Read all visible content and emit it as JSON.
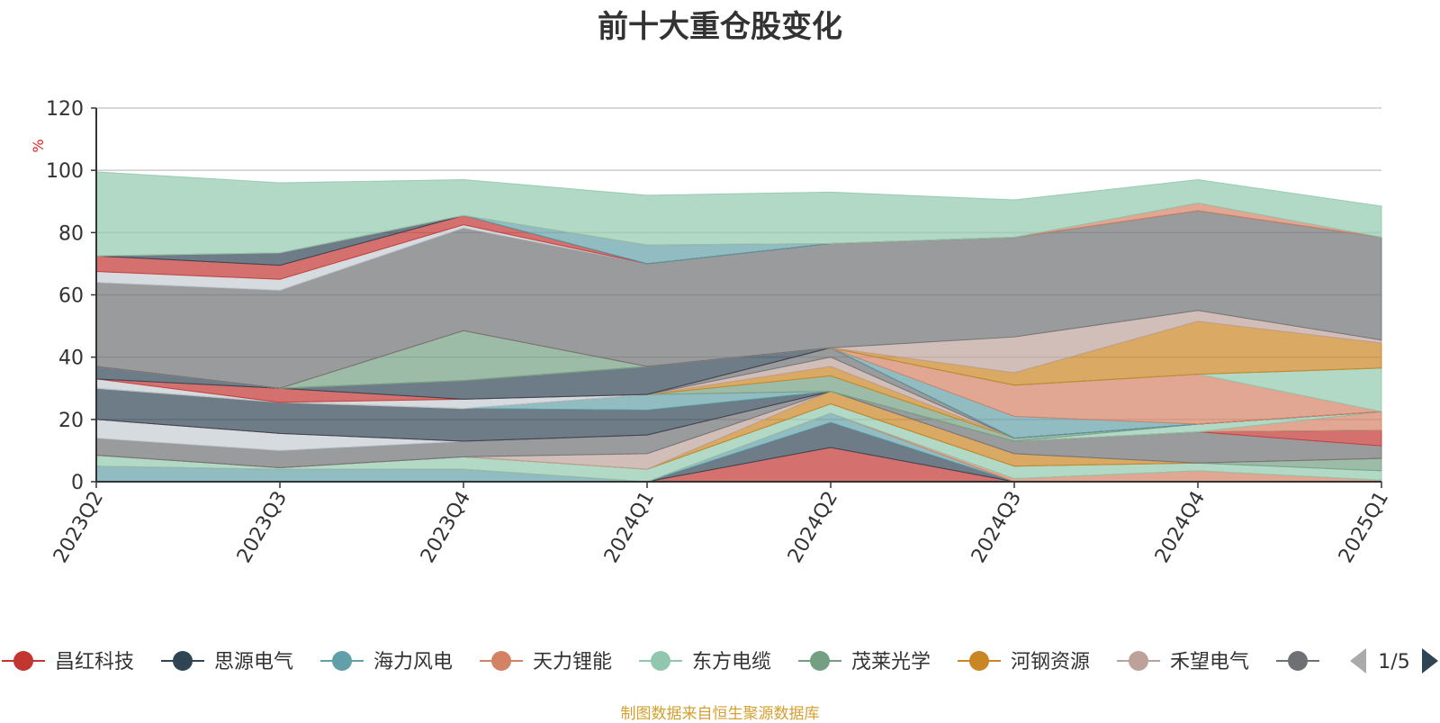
{
  "chart_data": {
    "type": "area",
    "title": "前十大重仓股变化",
    "ylabel": "%",
    "xlabel": "",
    "ylim": [
      0,
      120
    ],
    "yticks": [
      0,
      20,
      40,
      60,
      80,
      100,
      120
    ],
    "x": [
      "2023Q2",
      "2023Q3",
      "2023Q4",
      "2024Q1",
      "2024Q2",
      "2024Q3",
      "2024Q4",
      "2025Q1"
    ],
    "stacked": true,
    "series": [
      {
        "name": "",
        "values": [
          0,
          0,
          0,
          0,
          11,
          0,
          0,
          0
        ]
      },
      {
        "name": "",
        "values": [
          0,
          0,
          0,
          0,
          8,
          0,
          0,
          0
        ]
      },
      {
        "name": "",
        "values": [
          5,
          4,
          4,
          0,
          3,
          0,
          0,
          0
        ]
      },
      {
        "name": "",
        "values": [
          0,
          0,
          0,
          0,
          0,
          1,
          3.5,
          0.5
        ]
      },
      {
        "name": "",
        "values": [
          3.5,
          0.5,
          4,
          4,
          3,
          4,
          2.5,
          3
        ]
      },
      {
        "name": "",
        "values": [
          0,
          0,
          0,
          0,
          0,
          0,
          0,
          4
        ]
      },
      {
        "name": "",
        "values": [
          0,
          0,
          0,
          0,
          4,
          4,
          0,
          0
        ]
      },
      {
        "name": "",
        "values": [
          0,
          0,
          0,
          5,
          0,
          0,
          0,
          0
        ]
      },
      {
        "name": "",
        "values": [
          5.5,
          5.5,
          5,
          6,
          0,
          4,
          10,
          4
        ]
      },
      {
        "name": "",
        "values": [
          6,
          5.5,
          0,
          0,
          0,
          0,
          0,
          0
        ]
      },
      {
        "name": "",
        "values": [
          0,
          0,
          0,
          0,
          0,
          0,
          0,
          5
        ]
      },
      {
        "name": "",
        "values": [
          10,
          10,
          10.5,
          8,
          0,
          0,
          0,
          0
        ]
      },
      {
        "name": "",
        "values": [
          0,
          0,
          0,
          5,
          0,
          0,
          0,
          0
        ]
      },
      {
        "name": "",
        "values": [
          0,
          0,
          0,
          0,
          0,
          0,
          0,
          6
        ]
      },
      {
        "name": "",
        "values": [
          0,
          0,
          0,
          0,
          0,
          0,
          2.5,
          0
        ]
      },
      {
        "name": "",
        "values": [
          0,
          0,
          0,
          0,
          5,
          1,
          0,
          0
        ]
      },
      {
        "name": "",
        "values": [
          0,
          0,
          0,
          0,
          3,
          0,
          0,
          0
        ]
      },
      {
        "name": "",
        "values": [
          0,
          0,
          0,
          0,
          3,
          0,
          0,
          0
        ]
      },
      {
        "name": "",
        "values": [
          0,
          0,
          0,
          0,
          3,
          0,
          0,
          0
        ]
      },
      {
        "name": "",
        "values": [
          3,
          0,
          3,
          0,
          0,
          0,
          0,
          0
        ]
      },
      {
        "name": "",
        "values": [
          0,
          4.5,
          0,
          0,
          0,
          0,
          0,
          0
        ]
      },
      {
        "name": "",
        "values": [
          4,
          0,
          6,
          9,
          0,
          0,
          0,
          0
        ]
      },
      {
        "name": "",
        "values": [
          0,
          0,
          0,
          0,
          0,
          7,
          0,
          0
        ]
      },
      {
        "name": "",
        "values": [
          0,
          0,
          0,
          0,
          0,
          10,
          16,
          0
        ]
      },
      {
        "name": "",
        "values": [
          0,
          0,
          0,
          0,
          0,
          0,
          0,
          14
        ]
      },
      {
        "name": "",
        "values": [
          0,
          0,
          16,
          0,
          0,
          0,
          0,
          0
        ]
      },
      {
        "name": "",
        "values": [
          0,
          0,
          0,
          0,
          0,
          4,
          17,
          8
        ]
      },
      {
        "name": "",
        "values": [
          0,
          0,
          0,
          0,
          0,
          11.5,
          3.5,
          1
        ]
      },
      {
        "name": "",
        "values": [
          27,
          31.5,
          33,
          33,
          33.5,
          32,
          32,
          33
        ]
      },
      {
        "name": "",
        "values": [
          3.5,
          3.5,
          1,
          0,
          0,
          0,
          0,
          0
        ]
      },
      {
        "name": "",
        "values": [
          5,
          4.5,
          3,
          0,
          0,
          0,
          0,
          0
        ]
      },
      {
        "name": "",
        "values": [
          0,
          4,
          0,
          0,
          0,
          0,
          0,
          0
        ]
      },
      {
        "name": "",
        "values": [
          0,
          0,
          0,
          6,
          0,
          0,
          0,
          0
        ]
      },
      {
        "name": "",
        "values": [
          0,
          0,
          0,
          0,
          0,
          0,
          2.5,
          0
        ]
      },
      {
        "name": "",
        "values": [
          27,
          22.5,
          11.5,
          16,
          16.5,
          12,
          7.5,
          10
        ]
      }
    ]
  },
  "legend": {
    "items": [
      {
        "label": "昌红科技",
        "color": "#c23531"
      },
      {
        "label": "思源电气",
        "color": "#2f4554"
      },
      {
        "label": "海力风电",
        "color": "#61a0a8"
      },
      {
        "label": "天力锂能",
        "color": "#d48265"
      },
      {
        "label": "东方电缆",
        "color": "#91c7ae"
      },
      {
        "label": "茂莱光学",
        "color": "#749f83"
      },
      {
        "label": "河钢资源",
        "color": "#ca8622"
      },
      {
        "label": "禾望电气",
        "color": "#bda29a"
      },
      {
        "label": "",
        "color": "#6e7074"
      }
    ],
    "page": "1/5"
  },
  "source_note": "制图数据来自恒生聚源数据库",
  "colors": [
    "#c23531",
    "#2f4554",
    "#61a0a8",
    "#d48265",
    "#91c7ae",
    "#749f83",
    "#ca8622",
    "#bda29a",
    "#6e7074",
    "#c4ccd3"
  ]
}
